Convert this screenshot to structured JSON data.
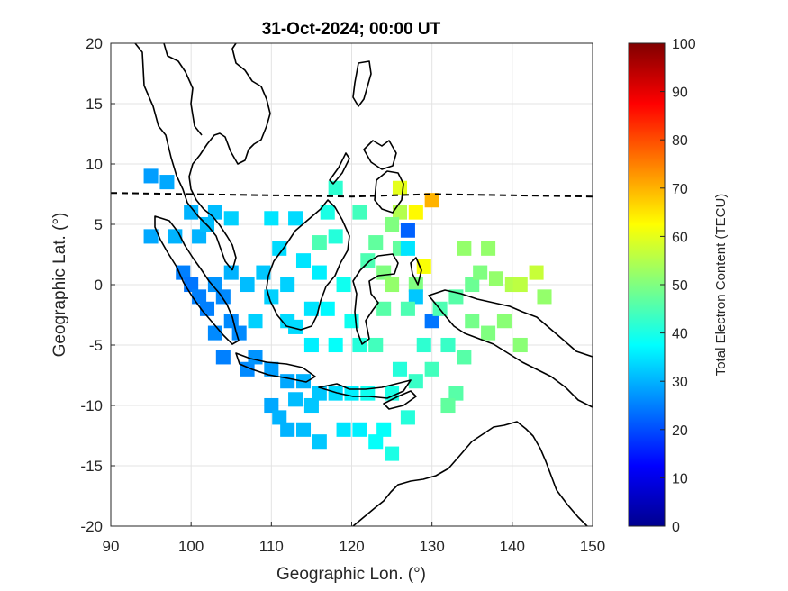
{
  "chart_data": {
    "type": "heatmap",
    "title": "31-Oct-2024; 00:00 UT",
    "xlabel": "Geographic Lon. (°)",
    "ylabel": "Geographic Lat. (°)",
    "xlim": [
      90,
      150
    ],
    "ylim": [
      -20,
      20
    ],
    "xticks": [
      "90",
      "100",
      "110",
      "120",
      "130",
      "140",
      "150"
    ],
    "yticks": [
      "20",
      "15",
      "10",
      "5",
      "0",
      "-5",
      "-10",
      "-15",
      "-20"
    ],
    "xtick_values": [
      90,
      100,
      110,
      120,
      130,
      140,
      150
    ],
    "ytick_values": [
      20,
      15,
      10,
      5,
      0,
      -5,
      -10,
      -15,
      -20
    ],
    "grid": true,
    "colorbar": {
      "label": "Total Electron Content (TECU)",
      "min": 0,
      "max": 100,
      "ticks": [
        "100",
        "90",
        "80",
        "70",
        "60",
        "50",
        "40",
        "30",
        "20",
        "10",
        "0"
      ],
      "tick_values": [
        100,
        90,
        80,
        70,
        60,
        50,
        40,
        30,
        20,
        10,
        0
      ],
      "colormap": "jet"
    },
    "magnetic_equator_lat": [
      [
        90,
        7.6
      ],
      [
        100,
        7.5
      ],
      [
        110,
        7.4
      ],
      [
        120,
        7.3
      ],
      [
        130,
        7.5
      ],
      [
        140,
        7.4
      ],
      [
        150,
        7.3
      ]
    ],
    "points": [
      {
        "lon": 95,
        "lat": 9,
        "tec": 28
      },
      {
        "lon": 97,
        "lat": 8.5,
        "tec": 29
      },
      {
        "lon": 95,
        "lat": 4,
        "tec": 29
      },
      {
        "lon": 98,
        "lat": 4,
        "tec": 30
      },
      {
        "lon": 100,
        "lat": 6,
        "tec": 30
      },
      {
        "lon": 101,
        "lat": 4,
        "tec": 30
      },
      {
        "lon": 102,
        "lat": 5,
        "tec": 31
      },
      {
        "lon": 103,
        "lat": 6,
        "tec": 31
      },
      {
        "lon": 105,
        "lat": 5.5,
        "tec": 33
      },
      {
        "lon": 99,
        "lat": 1,
        "tec": 25
      },
      {
        "lon": 100,
        "lat": 0,
        "tec": 24
      },
      {
        "lon": 101,
        "lat": -1,
        "tec": 25
      },
      {
        "lon": 102,
        "lat": -2,
        "tec": 25
      },
      {
        "lon": 103,
        "lat": 0,
        "tec": 27
      },
      {
        "lon": 104,
        "lat": -1,
        "tec": 26
      },
      {
        "lon": 105,
        "lat": 1,
        "tec": 30
      },
      {
        "lon": 105,
        "lat": -3,
        "tec": 26
      },
      {
        "lon": 106,
        "lat": -4,
        "tec": 26
      },
      {
        "lon": 107,
        "lat": 0,
        "tec": 31
      },
      {
        "lon": 103,
        "lat": -4,
        "tec": 26
      },
      {
        "lon": 104,
        "lat": -6,
        "tec": 25
      },
      {
        "lon": 107,
        "lat": -7,
        "tec": 26
      },
      {
        "lon": 108,
        "lat": -6,
        "tec": 27
      },
      {
        "lon": 110,
        "lat": -7,
        "tec": 28
      },
      {
        "lon": 112,
        "lat": -8,
        "tec": 29
      },
      {
        "lon": 114,
        "lat": -8,
        "tec": 30
      },
      {
        "lon": 109,
        "lat": 1,
        "tec": 32
      },
      {
        "lon": 110,
        "lat": -1,
        "tec": 33
      },
      {
        "lon": 112,
        "lat": 0,
        "tec": 33
      },
      {
        "lon": 111,
        "lat": 3,
        "tec": 34
      },
      {
        "lon": 114,
        "lat": 2,
        "tec": 35
      },
      {
        "lon": 112,
        "lat": -3,
        "tec": 34
      },
      {
        "lon": 115,
        "lat": -2,
        "tec": 35
      },
      {
        "lon": 117,
        "lat": -2,
        "tec": 37
      },
      {
        "lon": 116,
        "lat": 1,
        "tec": 36
      },
      {
        "lon": 108,
        "lat": -3,
        "tec": 33
      },
      {
        "lon": 113,
        "lat": 5.5,
        "tec": 34
      },
      {
        "lon": 110,
        "lat": 5.5,
        "tec": 35
      },
      {
        "lon": 118,
        "lat": 4,
        "tec": 41
      },
      {
        "lon": 117,
        "lat": 6,
        "tec": 40
      },
      {
        "lon": 116,
        "lat": 3.5,
        "tec": 45
      },
      {
        "lon": 119,
        "lat": 0,
        "tec": 39
      },
      {
        "lon": 118,
        "lat": 8,
        "tec": 42
      },
      {
        "lon": 121,
        "lat": 6,
        "tec": 44
      },
      {
        "lon": 122,
        "lat": 2,
        "tec": 45
      },
      {
        "lon": 120,
        "lat": -3,
        "tec": 39
      },
      {
        "lon": 118,
        "lat": -5,
        "tec": 38
      },
      {
        "lon": 115,
        "lat": -5,
        "tec": 36
      },
      {
        "lon": 113,
        "lat": -3.5,
        "tec": 34
      },
      {
        "lon": 121,
        "lat": -5,
        "tec": 41
      },
      {
        "lon": 123,
        "lat": 3.5,
        "tec": 47
      },
      {
        "lon": 124,
        "lat": 1,
        "tec": 50
      },
      {
        "lon": 124,
        "lat": -2,
        "tec": 46
      },
      {
        "lon": 123,
        "lat": -5,
        "tec": 44
      },
      {
        "lon": 125,
        "lat": 0,
        "tec": 52
      },
      {
        "lon": 126,
        "lat": 6,
        "tec": 55
      },
      {
        "lon": 126,
        "lat": 8,
        "tec": 60
      },
      {
        "lon": 128,
        "lat": 6,
        "tec": 63
      },
      {
        "lon": 130,
        "lat": 7,
        "tec": 70
      },
      {
        "lon": 125,
        "lat": 5,
        "tec": 50
      },
      {
        "lon": 126,
        "lat": 3,
        "tec": 47
      },
      {
        "lon": 127,
        "lat": 4.5,
        "tec": 22
      },
      {
        "lon": 127,
        "lat": 3,
        "tec": 35
      },
      {
        "lon": 129,
        "lat": 1.5,
        "tec": 62
      },
      {
        "lon": 128,
        "lat": 0,
        "tec": 50
      },
      {
        "lon": 128,
        "lat": -1,
        "tec": 32
      },
      {
        "lon": 127,
        "lat": -2,
        "tec": 45
      },
      {
        "lon": 130,
        "lat": -3,
        "tec": 24
      },
      {
        "lon": 129,
        "lat": -5,
        "tec": 42
      },
      {
        "lon": 132,
        "lat": -5,
        "tec": 43
      },
      {
        "lon": 131,
        "lat": -2,
        "tec": 45
      },
      {
        "lon": 133,
        "lat": -1,
        "tec": 46
      },
      {
        "lon": 135,
        "lat": 0,
        "tec": 48
      },
      {
        "lon": 134,
        "lat": 3,
        "tec": 52
      },
      {
        "lon": 137,
        "lat": 3,
        "tec": 52
      },
      {
        "lon": 136,
        "lat": 1,
        "tec": 50
      },
      {
        "lon": 138,
        "lat": 0.5,
        "tec": 52
      },
      {
        "lon": 140,
        "lat": 0,
        "tec": 55
      },
      {
        "lon": 141,
        "lat": 0,
        "tec": 56
      },
      {
        "lon": 143,
        "lat": 1,
        "tec": 57
      },
      {
        "lon": 144,
        "lat": -1,
        "tec": 52
      },
      {
        "lon": 139,
        "lat": -3,
        "tec": 51
      },
      {
        "lon": 137,
        "lat": -4,
        "tec": 50
      },
      {
        "lon": 141,
        "lat": -5,
        "tec": 51
      },
      {
        "lon": 135,
        "lat": -3,
        "tec": 49
      },
      {
        "lon": 134,
        "lat": -6,
        "tec": 46
      },
      {
        "lon": 126,
        "lat": -7,
        "tec": 41
      },
      {
        "lon": 128,
        "lat": -8,
        "tec": 43
      },
      {
        "lon": 130,
        "lat": -7,
        "tec": 44
      },
      {
        "lon": 133,
        "lat": -9,
        "tec": 46
      },
      {
        "lon": 125,
        "lat": -9,
        "tec": 40
      },
      {
        "lon": 124,
        "lat": -12,
        "tec": 38
      },
      {
        "lon": 127,
        "lat": -11,
        "tec": 41
      },
      {
        "lon": 132,
        "lat": -10,
        "tec": 47
      },
      {
        "lon": 122,
        "lat": -9,
        "tec": 39
      },
      {
        "lon": 120,
        "lat": -9,
        "tec": 36
      },
      {
        "lon": 118,
        "lat": -9,
        "tec": 34
      },
      {
        "lon": 116,
        "lat": -9,
        "tec": 32
      },
      {
        "lon": 113,
        "lat": -9.5,
        "tec": 31
      },
      {
        "lon": 115,
        "lat": -10,
        "tec": 32
      },
      {
        "lon": 121,
        "lat": -12,
        "tec": 36
      },
      {
        "lon": 123,
        "lat": -13,
        "tec": 38
      },
      {
        "lon": 125,
        "lat": -14,
        "tec": 40
      },
      {
        "lon": 112,
        "lat": -12,
        "tec": 30
      },
      {
        "lon": 114,
        "lat": -12,
        "tec": 31
      },
      {
        "lon": 116,
        "lat": -13,
        "tec": 32
      },
      {
        "lon": 119,
        "lat": -12,
        "tec": 35
      },
      {
        "lon": 110,
        "lat": -10,
        "tec": 29
      },
      {
        "lon": 111,
        "lat": -11,
        "tec": 30
      }
    ]
  }
}
